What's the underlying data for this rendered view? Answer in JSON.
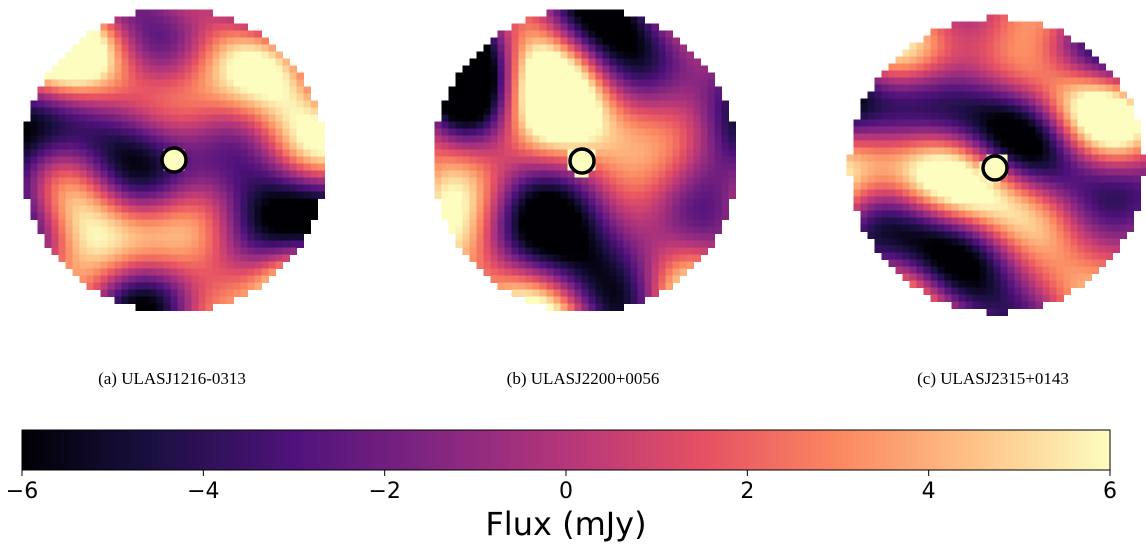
{
  "panels": [
    {
      "caption": "(a) ULASJ1216-0313"
    },
    {
      "caption": "(b) ULASJ2200+0056"
    },
    {
      "caption": "(c) ULASJ2315+0143"
    }
  ],
  "chart_data": {
    "type": "colorbar",
    "xlabel": "Flux (mJy)",
    "xlim": [
      -6,
      6
    ],
    "xticks": [
      {
        "value": -6,
        "label": "−6"
      },
      {
        "value": -4,
        "label": "−4"
      },
      {
        "value": -2,
        "label": "−2"
      },
      0,
      2,
      4,
      6
    ],
    "colors": [
      "#000004",
      "#1c1044",
      "#4f127b",
      "#812581",
      "#b5367a",
      "#e55064",
      "#fb8761",
      "#fec287",
      "#fcfdbf"
    ]
  }
}
